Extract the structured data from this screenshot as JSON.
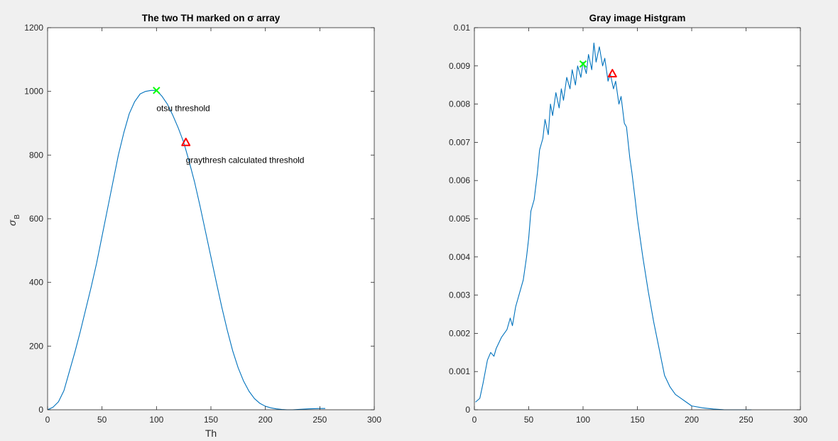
{
  "chart_data": [
    {
      "type": "line",
      "title": "The two TH marked on σ array",
      "xlabel": "Th",
      "ylabel": "σ",
      "ylabel_sub": "B",
      "xlim": [
        0,
        300
      ],
      "ylim": [
        0,
        1200
      ],
      "xticks": [
        0,
        50,
        100,
        150,
        200,
        250,
        300
      ],
      "yticks": [
        0,
        200,
        400,
        600,
        800,
        1000,
        1200
      ],
      "line_color": "#0072bd",
      "series": [
        {
          "x": [
            0,
            5,
            10,
            15,
            20,
            25,
            30,
            35,
            40,
            45,
            50,
            55,
            60,
            65,
            70,
            75,
            80,
            85,
            90,
            95,
            100,
            105,
            110,
            115,
            120,
            125,
            130,
            135,
            140,
            145,
            150,
            155,
            160,
            165,
            170,
            175,
            180,
            185,
            190,
            195,
            200,
            205,
            210,
            215,
            220,
            225,
            230,
            240,
            250,
            255
          ],
          "y": [
            0,
            8,
            25,
            60,
            120,
            180,
            245,
            315,
            385,
            460,
            545,
            630,
            715,
            800,
            870,
            930,
            968,
            992,
            1000,
            1003,
            1003,
            985,
            960,
            925,
            885,
            840,
            780,
            715,
            640,
            560,
            480,
            400,
            322,
            250,
            185,
            132,
            90,
            58,
            35,
            20,
            11,
            6,
            3,
            1,
            0,
            0,
            1,
            3,
            4,
            4
          ]
        }
      ],
      "markers": [
        {
          "x": 100,
          "y": 1003,
          "symbol": "x",
          "color": "#00ff00",
          "label": "otsu threshold"
        },
        {
          "x": 127,
          "y": 840,
          "symbol": "triangle",
          "color": "#ff0000",
          "label": "graythresh calculated threshold"
        }
      ]
    },
    {
      "type": "line",
      "title": "Gray image Histgram",
      "xlabel": "",
      "ylabel": "",
      "xlim": [
        0,
        300
      ],
      "ylim": [
        0,
        0.01
      ],
      "xticks": [
        0,
        50,
        100,
        150,
        200,
        250,
        300
      ],
      "yticks": [
        0,
        0.001,
        0.002,
        0.003,
        0.004,
        0.005,
        0.006,
        0.007,
        0.008,
        0.009,
        0.01
      ],
      "line_color": "#0072bd",
      "series": [
        {
          "x": [
            1,
            5,
            8,
            10,
            12,
            15,
            18,
            20,
            25,
            30,
            33,
            35,
            38,
            40,
            45,
            48,
            50,
            52,
            55,
            58,
            60,
            63,
            65,
            68,
            70,
            72,
            75,
            78,
            80,
            82,
            85,
            88,
            90,
            93,
            95,
            98,
            100,
            103,
            105,
            108,
            110,
            112,
            115,
            118,
            120,
            123,
            125,
            128,
            130,
            133,
            135,
            138,
            140,
            143,
            145,
            148,
            150,
            155,
            160,
            165,
            170,
            175,
            180,
            185,
            190,
            195,
            200,
            210,
            220,
            230,
            240,
            250,
            255
          ],
          "y": [
            0.0002,
            0.0003,
            0.0007,
            0.001,
            0.0013,
            0.0015,
            0.0014,
            0.0016,
            0.0019,
            0.0021,
            0.0024,
            0.0022,
            0.0027,
            0.0029,
            0.0034,
            0.004,
            0.0045,
            0.0052,
            0.0055,
            0.0062,
            0.0068,
            0.0071,
            0.0076,
            0.0072,
            0.008,
            0.0077,
            0.0083,
            0.0079,
            0.0084,
            0.0081,
            0.0087,
            0.0084,
            0.0089,
            0.0085,
            0.009,
            0.0087,
            0.0091,
            0.0088,
            0.0093,
            0.0089,
            0.0096,
            0.0091,
            0.0095,
            0.009,
            0.0092,
            0.0086,
            0.0088,
            0.0084,
            0.0086,
            0.008,
            0.0082,
            0.0075,
            0.0074,
            0.0066,
            0.0062,
            0.0055,
            0.005,
            0.004,
            0.0031,
            0.0023,
            0.0016,
            0.0009,
            0.0006,
            0.0004,
            0.0003,
            0.0002,
            0.0001,
            5e-05,
            2e-05,
            0,
            0,
            0,
            0
          ]
        }
      ],
      "markers": [
        {
          "x": 100,
          "y": 0.00905,
          "symbol": "x",
          "color": "#00ff00"
        },
        {
          "x": 127,
          "y": 0.0088,
          "symbol": "triangle",
          "color": "#ff0000"
        }
      ]
    }
  ]
}
